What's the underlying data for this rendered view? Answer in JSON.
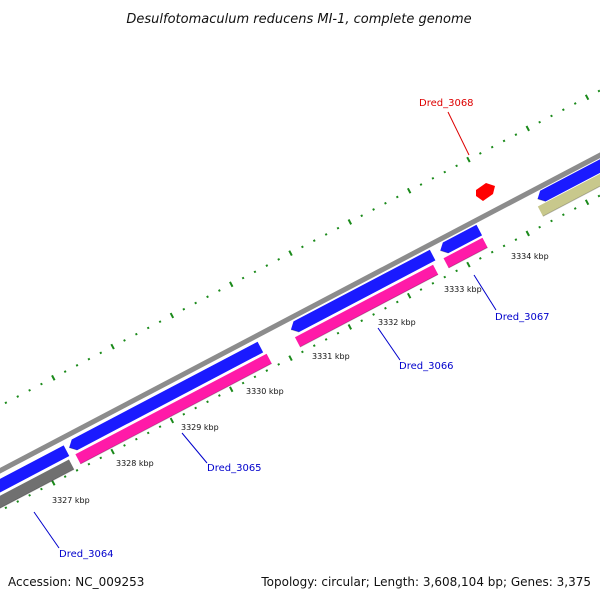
{
  "title": "Desulfotomaculum reducens MI-1, complete genome",
  "colors": {
    "backbone": "#8c8c8c",
    "forward_gene": "#1a1aff",
    "reverse_gene": "#ff1aa8",
    "highlight_gene": "#ff0000",
    "pseudo_gene": "#c8c88c",
    "other_gene": "#707070",
    "tick": "#1a8a1a",
    "label_blue": "#0000cc",
    "label_red": "#dd0000"
  },
  "scale": {
    "tick_labels": [
      "3327 kbp",
      "3328 kbp",
      "3329 kbp",
      "3330 kbp",
      "3331 kbp",
      "3332 kbp",
      "3333 kbp",
      "3334 kbp"
    ]
  },
  "gene_labels": [
    {
      "id": "Dred_3068",
      "color": "red"
    },
    {
      "id": "Dred_3067",
      "color": "blue"
    },
    {
      "id": "Dred_3066",
      "color": "blue"
    },
    {
      "id": "Dred_3065",
      "color": "blue"
    },
    {
      "id": "Dred_3064",
      "color": "blue"
    }
  ],
  "footer": {
    "accession": "Accession: NC_009253",
    "stats": "Topology: circular; Length: 3,608,104 bp; Genes: 3,375"
  }
}
